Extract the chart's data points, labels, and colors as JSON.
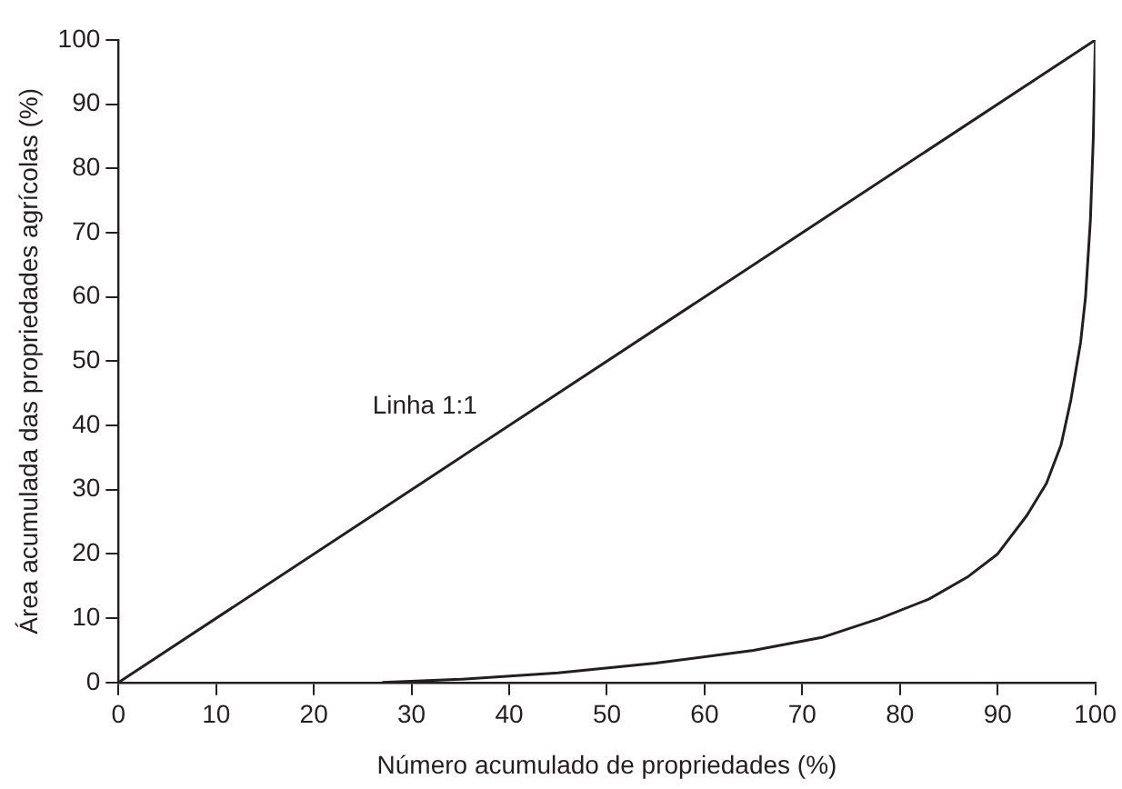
{
  "chart_data": {
    "type": "line",
    "xlabel": "Número acumulado de propriedades (%)",
    "ylabel": "Área acumulada das propriedades agrícolas (%)",
    "xlim": [
      0,
      100
    ],
    "xticks": [
      0,
      10,
      20,
      30,
      40,
      50,
      60,
      70,
      80,
      90,
      100
    ],
    "ylim": [
      0,
      100
    ],
    "yticks": [
      0,
      10,
      20,
      30,
      40,
      50,
      60,
      70,
      80,
      90,
      100
    ],
    "grid": false,
    "legend": false,
    "marker": "none",
    "line_style": "solid",
    "annotations": [
      "Linha 1:1"
    ],
    "series": [
      {
        "color": "#231f20",
        "x": [
          0,
          100
        ],
        "values": [
          0,
          100
        ]
      },
      {
        "color": "#231f20",
        "x": [
          27,
          35,
          45,
          55,
          65,
          72,
          78,
          83,
          87,
          90,
          93,
          95,
          96.5,
          97.5,
          98.5,
          99,
          99.5,
          99.8,
          100
        ],
        "values": [
          0,
          0.5,
          1.5,
          3,
          5,
          7,
          10,
          13,
          16.5,
          20,
          26,
          31,
          37,
          44,
          53,
          60,
          72,
          85,
          100
        ]
      }
    ]
  }
}
